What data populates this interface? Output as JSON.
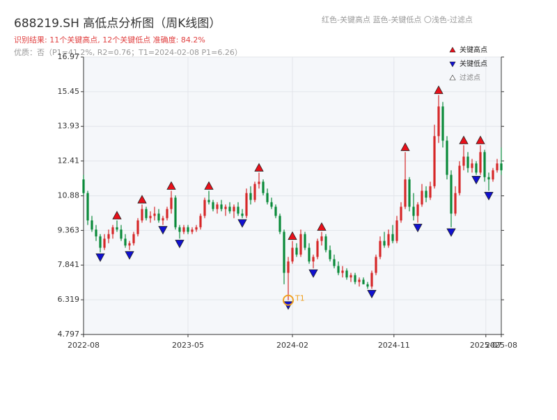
{
  "chart_data": {
    "type": "candlestick",
    "title": "688219.SH 高低点分析图（周K线图）",
    "subtitle": "识别结果: 11个关键高点, 12个关键低点  准确度: 84.2%",
    "note": "优质：否（P1=41.2%, R2=0.76；T1=2024-02-08 P1=6.26）",
    "header_legend": "红色-关键高点     蓝色-关键低点   〇浅色-过滤点",
    "up_color": "#d62728",
    "down_color": "#0a8a3a",
    "ylim": [
      4.797,
      16.97
    ],
    "yticks": [
      4.797,
      6.319,
      7.841,
      9.363,
      10.88,
      12.41,
      13.93,
      15.45,
      16.97
    ],
    "xlim": [
      0,
      100
    ],
    "xticks": [
      {
        "value": 0,
        "label": "2022-08"
      },
      {
        "value": 25,
        "label": "2023-05"
      },
      {
        "value": 50,
        "label": "2024-02"
      },
      {
        "value": 74.3,
        "label": "2024-11"
      },
      {
        "value": 96.3,
        "label": "2025-07"
      },
      {
        "value": 100,
        "label": "2025-08"
      }
    ],
    "grid": true,
    "legend": "upper right",
    "candles": [
      [
        11.6,
        11.8,
        10.9,
        11.0
      ],
      [
        11.0,
        11.1,
        9.6,
        9.8
      ],
      [
        9.8,
        10.0,
        9.3,
        9.4
      ],
      [
        9.4,
        9.6,
        8.9,
        9.1
      ],
      [
        9.1,
        9.2,
        8.4,
        8.6
      ],
      [
        8.6,
        9.2,
        8.5,
        9.0
      ],
      [
        9.0,
        9.4,
        8.8,
        9.2
      ],
      [
        9.2,
        9.6,
        9.0,
        9.5
      ],
      [
        9.5,
        9.8,
        9.3,
        9.4
      ],
      [
        9.4,
        9.6,
        8.9,
        9.0
      ],
      [
        9.0,
        9.2,
        8.6,
        8.7
      ],
      [
        8.7,
        8.9,
        8.5,
        8.8
      ],
      [
        8.8,
        9.3,
        8.7,
        9.2
      ],
      [
        9.2,
        9.9,
        9.1,
        9.8
      ],
      [
        9.8,
        10.5,
        9.7,
        10.3
      ],
      [
        10.3,
        10.4,
        9.8,
        9.9
      ],
      [
        9.9,
        10.2,
        9.7,
        10.0
      ],
      [
        10.0,
        10.4,
        9.8,
        10.1
      ],
      [
        10.1,
        10.3,
        9.7,
        9.8
      ],
      [
        9.8,
        10.0,
        9.6,
        9.9
      ],
      [
        9.9,
        10.4,
        9.8,
        10.3
      ],
      [
        10.3,
        11.1,
        10.1,
        10.8
      ],
      [
        10.8,
        10.9,
        9.4,
        9.5
      ],
      [
        9.5,
        9.6,
        9.0,
        9.3
      ],
      [
        9.3,
        9.6,
        9.2,
        9.5
      ],
      [
        9.5,
        9.6,
        9.2,
        9.3
      ],
      [
        9.3,
        9.5,
        9.2,
        9.4
      ],
      [
        9.4,
        9.6,
        9.3,
        9.5
      ],
      [
        9.5,
        10.1,
        9.4,
        10.0
      ],
      [
        10.0,
        10.8,
        9.9,
        10.7
      ],
      [
        10.7,
        11.1,
        10.5,
        10.6
      ],
      [
        10.6,
        10.7,
        10.2,
        10.3
      ],
      [
        10.3,
        10.6,
        10.1,
        10.5
      ],
      [
        10.5,
        10.7,
        10.2,
        10.3
      ],
      [
        10.3,
        10.5,
        10.0,
        10.4
      ],
      [
        10.4,
        10.6,
        10.1,
        10.2
      ],
      [
        10.2,
        10.5,
        9.9,
        10.4
      ],
      [
        10.4,
        10.6,
        10.0,
        10.1
      ],
      [
        10.1,
        10.3,
        9.9,
        10.0
      ],
      [
        10.0,
        11.2,
        9.9,
        11.0
      ],
      [
        11.0,
        11.3,
        10.5,
        10.7
      ],
      [
        10.7,
        11.5,
        10.6,
        11.4
      ],
      [
        11.4,
        11.9,
        11.2,
        11.5
      ],
      [
        11.5,
        11.6,
        10.9,
        11.0
      ],
      [
        11.0,
        11.2,
        10.5,
        10.6
      ],
      [
        10.6,
        10.8,
        10.3,
        10.4
      ],
      [
        10.4,
        10.5,
        9.9,
        10.0
      ],
      [
        10.0,
        10.1,
        9.2,
        9.3
      ],
      [
        9.3,
        9.4,
        7.0,
        7.5
      ],
      [
        7.5,
        8.2,
        6.3,
        8.0
      ],
      [
        8.0,
        8.9,
        7.9,
        8.6
      ],
      [
        8.6,
        8.8,
        8.2,
        8.3
      ],
      [
        8.3,
        9.4,
        8.2,
        9.2
      ],
      [
        9.2,
        9.3,
        8.5,
        8.6
      ],
      [
        8.6,
        8.8,
        7.9,
        8.0
      ],
      [
        8.0,
        8.3,
        7.7,
        8.2
      ],
      [
        8.2,
        9.0,
        8.1,
        8.9
      ],
      [
        8.9,
        9.3,
        8.7,
        9.1
      ],
      [
        9.1,
        9.2,
        8.4,
        8.5
      ],
      [
        8.5,
        8.7,
        8.0,
        8.1
      ],
      [
        8.1,
        8.3,
        7.7,
        7.8
      ],
      [
        7.8,
        8.0,
        7.4,
        7.5
      ],
      [
        7.5,
        7.8,
        7.3,
        7.6
      ],
      [
        7.6,
        7.7,
        7.2,
        7.3
      ],
      [
        7.3,
        7.5,
        7.1,
        7.4
      ],
      [
        7.4,
        7.5,
        7.0,
        7.1
      ],
      [
        7.1,
        7.3,
        6.9,
        7.2
      ],
      [
        7.2,
        7.3,
        7.0,
        7.0
      ],
      [
        7.0,
        7.1,
        6.8,
        6.9
      ],
      [
        6.9,
        7.6,
        6.8,
        7.5
      ],
      [
        7.5,
        8.3,
        7.4,
        8.2
      ],
      [
        8.2,
        9.1,
        8.1,
        8.9
      ],
      [
        8.9,
        9.3,
        8.6,
        8.7
      ],
      [
        8.7,
        9.4,
        8.6,
        9.2
      ],
      [
        9.2,
        9.6,
        8.8,
        8.9
      ],
      [
        8.9,
        10.0,
        8.8,
        9.8
      ],
      [
        9.8,
        10.6,
        9.7,
        10.4
      ],
      [
        10.4,
        12.8,
        10.3,
        11.6
      ],
      [
        11.6,
        11.7,
        10.2,
        10.4
      ],
      [
        10.4,
        11.0,
        9.8,
        10.0
      ],
      [
        10.0,
        10.6,
        9.7,
        10.5
      ],
      [
        10.5,
        11.4,
        10.4,
        11.1
      ],
      [
        11.1,
        11.3,
        10.6,
        10.8
      ],
      [
        10.8,
        11.5,
        10.7,
        11.3
      ],
      [
        11.3,
        14.0,
        11.2,
        13.5
      ],
      [
        13.5,
        15.3,
        13.2,
        14.8
      ],
      [
        14.8,
        15.0,
        13.0,
        13.3
      ],
      [
        13.3,
        13.5,
        11.6,
        11.8
      ],
      [
        11.8,
        12.0,
        9.5,
        10.1
      ],
      [
        10.1,
        11.3,
        10.0,
        11.0
      ],
      [
        11.0,
        12.4,
        10.9,
        12.2
      ],
      [
        12.2,
        13.1,
        12.0,
        12.6
      ],
      [
        12.6,
        12.8,
        11.9,
        12.1
      ],
      [
        12.1,
        12.5,
        11.9,
        12.3
      ],
      [
        12.3,
        12.4,
        11.8,
        11.9
      ],
      [
        11.9,
        13.1,
        11.8,
        12.8
      ],
      [
        12.8,
        12.9,
        11.5,
        11.7
      ],
      [
        11.7,
        11.9,
        11.1,
        11.6
      ],
      [
        11.6,
        12.1,
        11.5,
        12.0
      ],
      [
        12.0,
        12.5,
        11.9,
        12.3
      ],
      [
        12.3,
        13.0,
        11.8,
        12.0
      ]
    ],
    "key_highs": {
      "name": "关键高点",
      "color": "#e8101a",
      "index": [
        8,
        14,
        21,
        30,
        42,
        50,
        57,
        77,
        85,
        91,
        95
      ]
    },
    "key_lows": {
      "name": "关键低点",
      "color": "#1010d0",
      "index": [
        4,
        11,
        19,
        23,
        38,
        49,
        55,
        69,
        80,
        88,
        94,
        97
      ]
    },
    "filtered": {
      "name": "过滤点",
      "color": "#ffffff"
    },
    "annotation": {
      "text": "T1",
      "index": 49,
      "color": "#f0a020"
    }
  }
}
